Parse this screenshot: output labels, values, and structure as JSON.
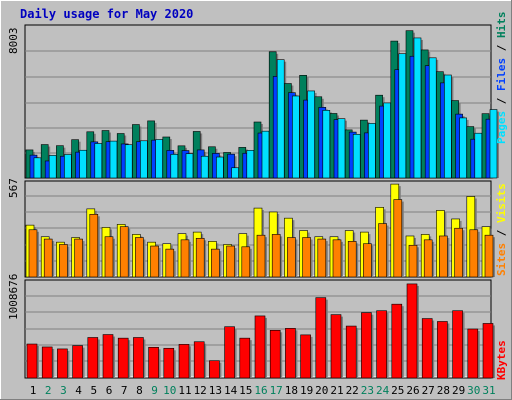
{
  "title": "Daily usage for May 2020",
  "colors": {
    "background": "#c0c0c0",
    "plot_bg": "#c0c0c0",
    "title": "#0000c0",
    "hits": "#00805c",
    "files": "#0040ff",
    "pages": "#00e0ff",
    "visits": "#ffff00",
    "sites": "#ff8000",
    "kbytes": "#ff0000",
    "weekend_label": "#00805c",
    "weekday_label": "#000000"
  },
  "chart_data": [
    {
      "type": "bar",
      "title": "Daily usage for May 2020",
      "ylabel_parts": [
        "Pages",
        "Files",
        "Hits"
      ],
      "ytick_label": "8003",
      "ylim": [
        0,
        9700
      ],
      "categories": [
        "1",
        "2",
        "3",
        "4",
        "5",
        "6",
        "7",
        "8",
        "9",
        "10",
        "11",
        "12",
        "13",
        "14",
        "15",
        "16",
        "17",
        "18",
        "19",
        "20",
        "21",
        "22",
        "23",
        "24",
        "25",
        "26",
        "27",
        "28",
        "29",
        "30",
        "31"
      ],
      "weekend_days": [
        "2",
        "3",
        "9",
        "10",
        "16",
        "17",
        "23",
        "24",
        "30",
        "31"
      ],
      "series": [
        {
          "name": "Hits",
          "values": [
            1780,
            2120,
            2050,
            2430,
            2930,
            3010,
            2820,
            3390,
            3620,
            2600,
            2040,
            2950,
            1980,
            1620,
            1940,
            3550,
            8000,
            5990,
            6510,
            5150,
            4090,
            3050,
            3670,
            5250,
            8680,
            9340,
            8120,
            6740,
            4910,
            3260,
            4080
          ]
        },
        {
          "name": "Files",
          "values": [
            1450,
            1080,
            1380,
            1640,
            2290,
            2300,
            2160,
            2300,
            2400,
            1750,
            1740,
            1780,
            1560,
            1510,
            1570,
            2850,
            6440,
            5410,
            4940,
            4480,
            3700,
            2910,
            2860,
            4560,
            6870,
            7720,
            7120,
            6030,
            4050,
            2460,
            3730
          ]
        },
        {
          "name": "Pages",
          "values": [
            1280,
            1430,
            1490,
            1760,
            2190,
            2340,
            2110,
            2360,
            2440,
            1500,
            1540,
            1380,
            1330,
            650,
            1750,
            2970,
            7500,
            5200,
            5520,
            4290,
            3760,
            2770,
            3460,
            4760,
            7880,
            8880,
            7620,
            6530,
            3810,
            2840,
            4340
          ]
        }
      ]
    },
    {
      "type": "bar",
      "ylabel_parts": [
        "Sites",
        "Visits"
      ],
      "ytick_label": "567",
      "ylim": [
        0,
        620
      ],
      "categories": [
        "1",
        "2",
        "3",
        "4",
        "5",
        "6",
        "7",
        "8",
        "9",
        "10",
        "11",
        "12",
        "13",
        "14",
        "15",
        "16",
        "17",
        "18",
        "19",
        "20",
        "21",
        "22",
        "23",
        "24",
        "25",
        "26",
        "27",
        "28",
        "29",
        "30",
        "31"
      ],
      "series": [
        {
          "name": "Visits",
          "values": [
            335,
            260,
            225,
            255,
            440,
            320,
            340,
            275,
            225,
            215,
            280,
            290,
            230,
            210,
            280,
            445,
            420,
            380,
            300,
            260,
            260,
            300,
            290,
            450,
            600,
            265,
            275,
            430,
            375,
            520,
            325
          ]
        },
        {
          "name": "Sites",
          "values": [
            305,
            245,
            210,
            245,
            405,
            260,
            325,
            255,
            200,
            180,
            240,
            250,
            180,
            200,
            195,
            270,
            275,
            255,
            255,
            245,
            240,
            230,
            215,
            345,
            500,
            205,
            240,
            265,
            315,
            305,
            270
          ]
        }
      ]
    },
    {
      "type": "bar",
      "ylabel": "KBytes",
      "ytick_label": "1008676",
      "ylim": [
        0,
        1500000
      ],
      "categories": [
        "1",
        "2",
        "3",
        "4",
        "5",
        "6",
        "7",
        "8",
        "9",
        "10",
        "11",
        "12",
        "13",
        "14",
        "15",
        "16",
        "17",
        "18",
        "19",
        "20",
        "21",
        "22",
        "23",
        "24",
        "25",
        "26",
        "27",
        "28",
        "29",
        "30",
        "31"
      ],
      "series": [
        {
          "name": "KBytes",
          "values": [
            520000,
            475000,
            445000,
            495000,
            620000,
            665000,
            610000,
            620000,
            470000,
            455000,
            515000,
            555000,
            265000,
            785000,
            610000,
            950000,
            730000,
            760000,
            660000,
            1230000,
            970000,
            795000,
            1000000,
            1030000,
            1130000,
            1440000,
            910000,
            865000,
            1030000,
            750000,
            835000
          ]
        }
      ]
    }
  ]
}
